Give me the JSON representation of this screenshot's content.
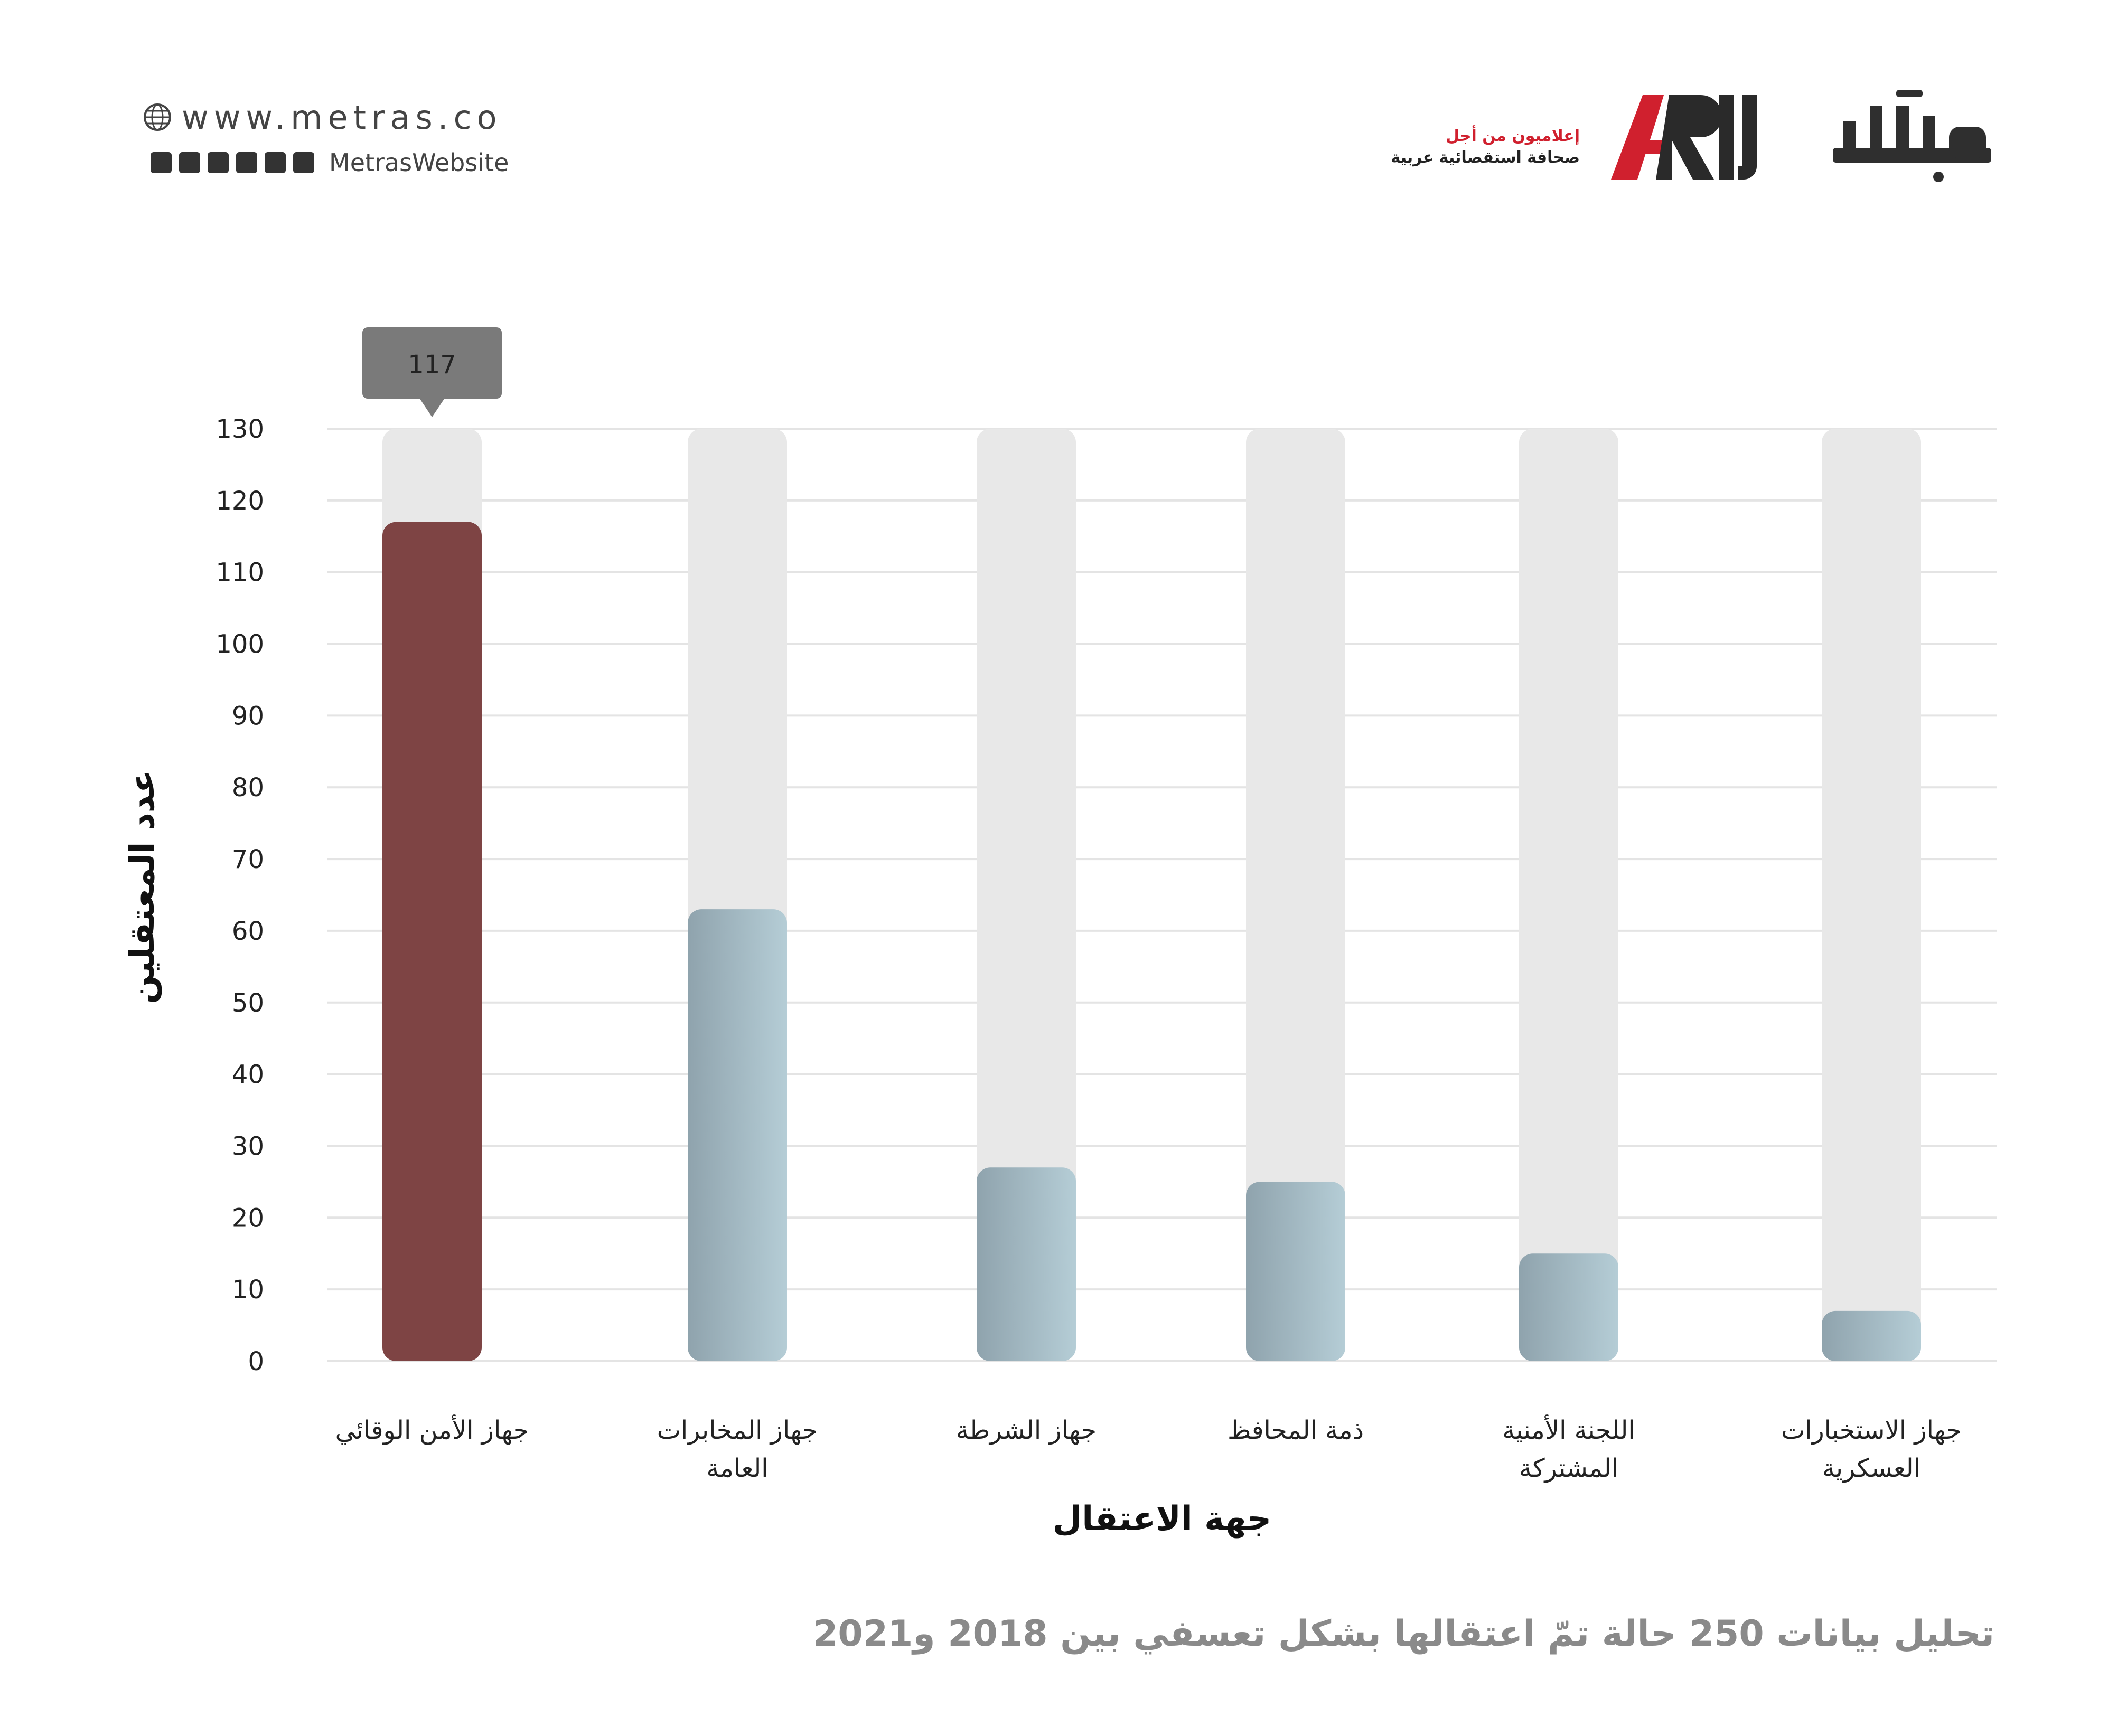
{
  "header": {
    "website": "www.metras.co",
    "social_handle": "MetrasWebsite",
    "social_icons": [
      "instagram-icon",
      "youtube-icon",
      "facebook-icon",
      "twitter-icon",
      "soundcloud-icon",
      "snapchat-icon"
    ],
    "arij_tagline_1": "إعلاميون من أجل",
    "arij_tagline_2": "صحافة استقصائية عربية",
    "arij_logo": "ARIJ",
    "metras_logo": "متراس"
  },
  "chart_data": {
    "type": "bar",
    "categories": [
      [
        "جهاز الأمن الوقائي"
      ],
      [
        "جهاز المخابرات",
        "العامة"
      ],
      [
        "جهاز الشرطة"
      ],
      [
        "ذمة المحافظ"
      ],
      [
        "اللجنة الأمنية",
        "المشتركة"
      ],
      [
        "جهاز الاستخبارات",
        "العسكرية"
      ]
    ],
    "values": [
      117,
      63,
      27,
      25,
      15,
      7
    ],
    "highlight_index": 0,
    "highlight_label": "117",
    "ylim": [
      0,
      130
    ],
    "yticks": [
      "0",
      "10",
      "20",
      "30",
      "40",
      "50",
      "60",
      "70",
      "80",
      "90",
      "100",
      "110",
      "120",
      "130"
    ],
    "grid": true,
    "ylabel": "عدد المعتقلين",
    "xlabel": "جهة الاعتقال",
    "subtitle": "تحليل بيانات 250 حالة تمّ اعتقالها بشكل تعسفي بين 2018 و2021",
    "colors": {
      "highlight": "#7e4444",
      "bar_start": "#8fa3ad",
      "bar_end": "#b5cdd6",
      "track": "#e8e8e8",
      "grid": "#e4e4e4",
      "tooltip": "#7a7a7a"
    }
  }
}
